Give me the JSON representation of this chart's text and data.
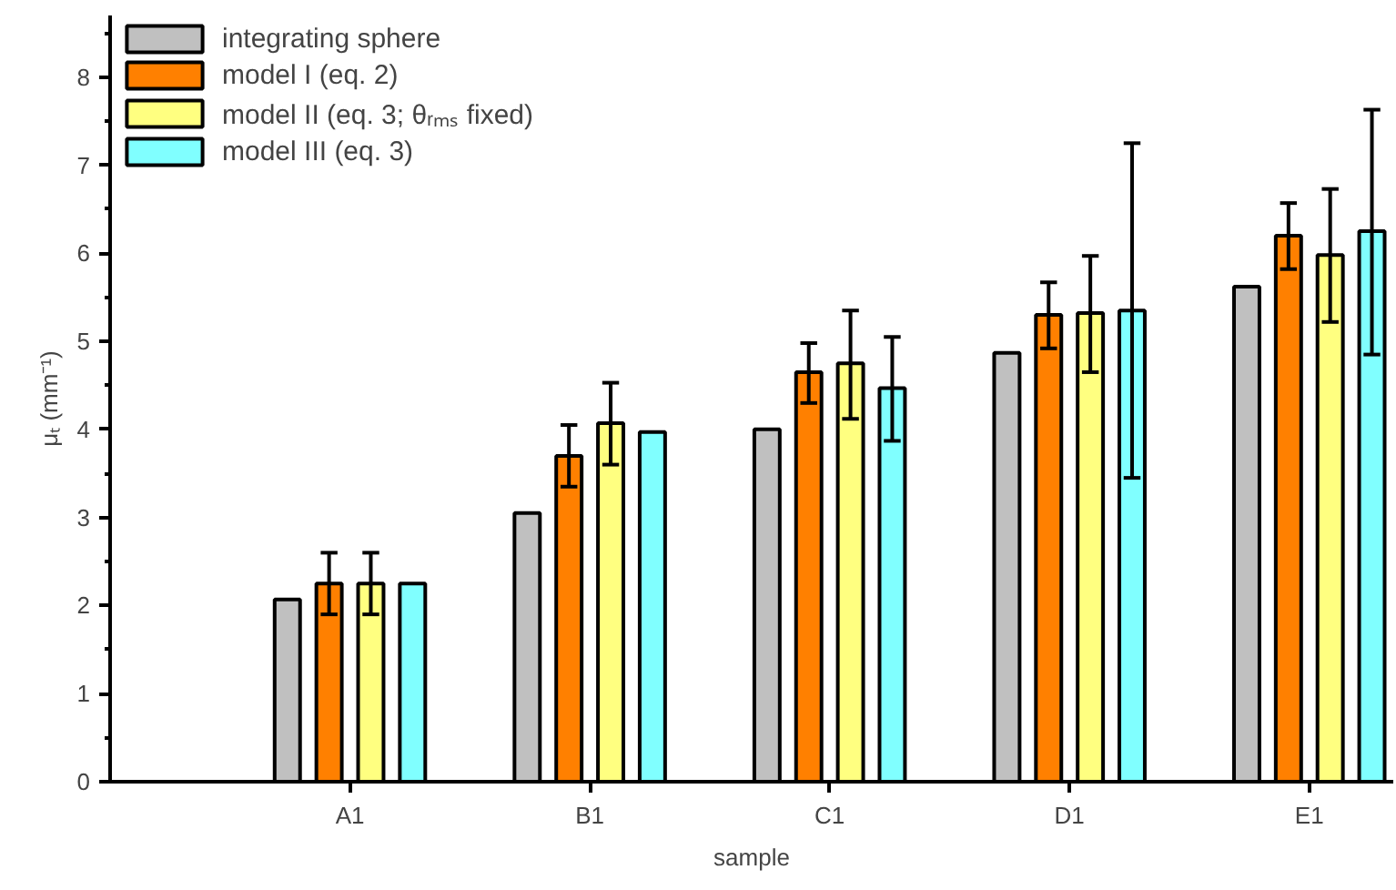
{
  "chart_data": {
    "type": "bar",
    "xlabel": "sample",
    "ylabel": "μₜ (mm⁻¹)",
    "categories": [
      "A1",
      "B1",
      "C1",
      "D1",
      "E1"
    ],
    "series": [
      {
        "name": "integrating sphere",
        "color": "#c0c0c0",
        "values": [
          2.07,
          3.05,
          4.0,
          4.87,
          5.62
        ]
      },
      {
        "name": "model I (eq. 2)",
        "color": "#ff8000",
        "values": [
          2.25,
          3.7,
          4.65,
          5.3,
          6.2
        ],
        "errors": [
          [
            1.9,
            2.6
          ],
          [
            3.35,
            4.05
          ],
          [
            4.3,
            4.98
          ],
          [
            4.92,
            5.67
          ],
          [
            5.82,
            6.57
          ]
        ]
      },
      {
        "name": "model II (eq. 3; θᵣₘₛ fixed)",
        "color": "#ffff80",
        "values": [
          2.25,
          4.07,
          4.75,
          5.32,
          5.98
        ],
        "errors": [
          [
            1.9,
            2.6
          ],
          [
            3.6,
            4.53
          ],
          [
            4.12,
            5.35
          ],
          [
            4.65,
            5.97
          ],
          [
            5.22,
            6.73
          ]
        ]
      },
      {
        "name": "model III (eq. 3)",
        "color": "#80ffff",
        "values": [
          2.25,
          3.97,
          4.47,
          5.35,
          6.25
        ],
        "errors": [
          null,
          null,
          [
            3.87,
            5.05
          ],
          [
            3.45,
            7.25
          ],
          [
            4.85,
            7.63
          ]
        ]
      }
    ],
    "ylim": [
      0,
      8.7
    ],
    "yticks": [
      0,
      1,
      2,
      3,
      4,
      5,
      6,
      7,
      8
    ],
    "grid": false,
    "legend": "top left"
  }
}
